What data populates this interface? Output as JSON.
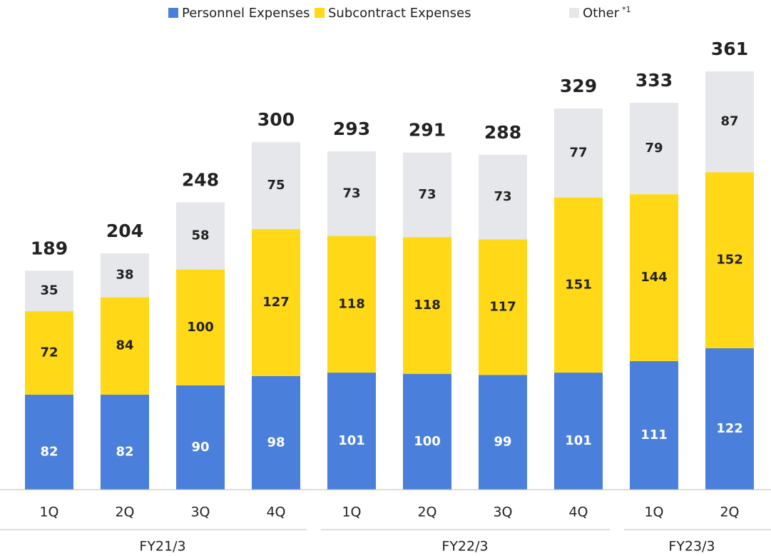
{
  "chart_data": {
    "type": "stacked_bar",
    "groups": [
      {
        "name": "FY21/3",
        "categories": [
          "1Q",
          "2Q",
          "3Q",
          "4Q"
        ]
      },
      {
        "name": "FY22/3",
        "categories": [
          "1Q",
          "2Q",
          "3Q",
          "4Q"
        ]
      },
      {
        "name": "FY23/3",
        "categories": [
          "1Q",
          "2Q"
        ]
      }
    ],
    "series": [
      {
        "name": "Personnel Expenses",
        "color": "#4a7fdc",
        "values": [
          82,
          82,
          90,
          98,
          101,
          100,
          99,
          101,
          111,
          122
        ]
      },
      {
        "name": "Subcontract Expenses",
        "color": "#ffd817",
        "values": [
          72,
          84,
          100,
          127,
          118,
          118,
          117,
          151,
          144,
          152
        ]
      },
      {
        "name": "Other",
        "name_note": "*1",
        "color": "#e6e7ea",
        "values": [
          35,
          38,
          58,
          75,
          73,
          73,
          73,
          77,
          79,
          87
        ]
      }
    ],
    "totals": [
      189,
      204,
      248,
      300,
      293,
      291,
      288,
      329,
      333,
      361
    ]
  }
}
